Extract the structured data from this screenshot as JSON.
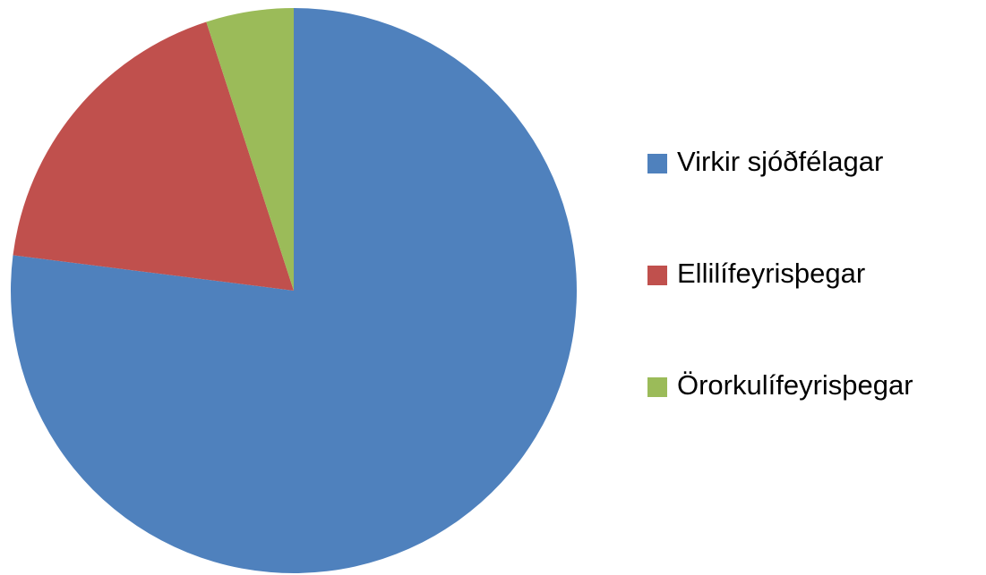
{
  "chart_data": {
    "type": "pie",
    "categories": [
      "Virkir sjóðfélagar",
      "Ellilífeyrisþegar",
      "Örorkulífeyrisþegar"
    ],
    "values": [
      77,
      18,
      5
    ],
    "colors": [
      "#4f81bd",
      "#c0504d",
      "#9bbb59"
    ],
    "legend": "right"
  }
}
